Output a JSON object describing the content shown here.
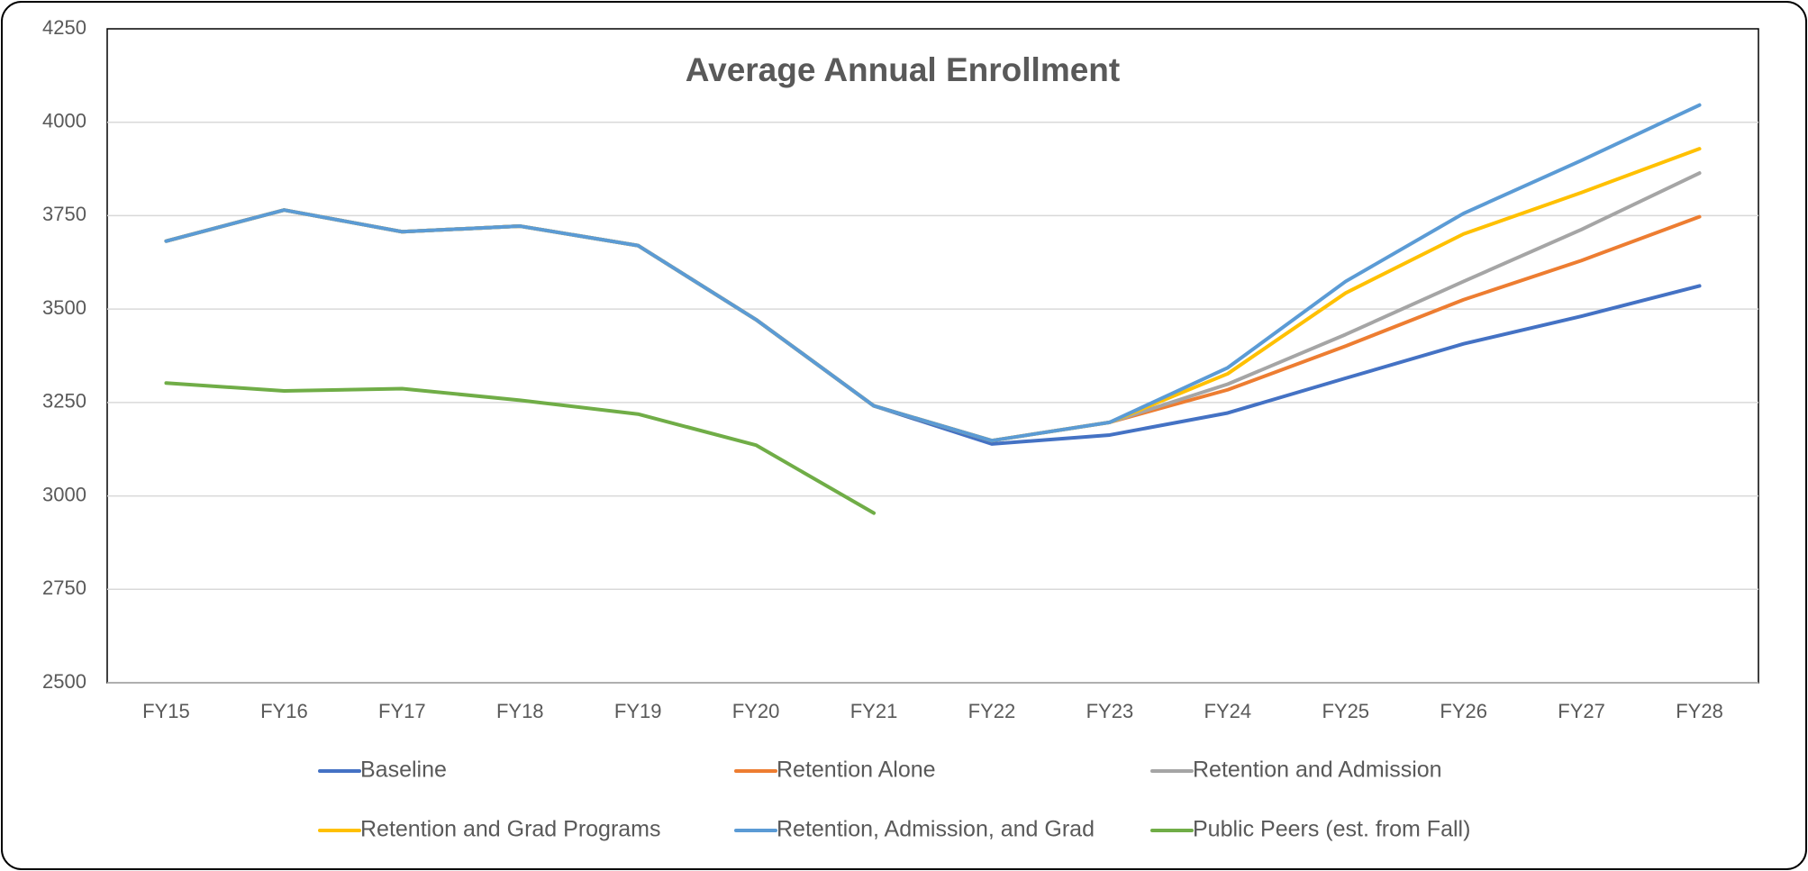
{
  "chart_data": {
    "type": "line",
    "title": "Average Annual Enrollment",
    "categories": [
      "FY15",
      "FY16",
      "FY17",
      "FY18",
      "FY19",
      "FY20",
      "FY21",
      "FY22",
      "FY23",
      "FY24",
      "FY25",
      "FY26",
      "FY27",
      "FY28"
    ],
    "series": [
      {
        "name": "Baseline",
        "color": "#4472c4",
        "values": [
          3682,
          3765,
          3707,
          3722,
          3670,
          3472,
          3241,
          3139,
          3163,
          3222,
          3315,
          3407,
          3481,
          3562
        ]
      },
      {
        "name": "Retention Alone",
        "color": "#ed7d31",
        "values": [
          3682,
          3765,
          3707,
          3722,
          3670,
          3472,
          3241,
          3148,
          3197,
          3284,
          3401,
          3525,
          3630,
          3747
        ]
      },
      {
        "name": "Retention and Admission",
        "color": "#a5a5a5",
        "values": [
          3682,
          3765,
          3707,
          3722,
          3670,
          3472,
          3241,
          3148,
          3197,
          3299,
          3432,
          3574,
          3713,
          3864
        ]
      },
      {
        "name": "Retention and Grad Programs",
        "color": "#ffc000",
        "values": [
          3682,
          3765,
          3707,
          3722,
          3670,
          3472,
          3241,
          3148,
          3197,
          3327,
          3543,
          3701,
          3812,
          3929
        ]
      },
      {
        "name": "Retention, Admission, and Grad",
        "color": "#5b9bd5",
        "values": [
          3682,
          3765,
          3707,
          3722,
          3670,
          3472,
          3241,
          3148,
          3197,
          3343,
          3574,
          3756,
          3898,
          4046
        ]
      },
      {
        "name": "Public Peers (est. from Fall)",
        "color": "#70ad47",
        "values": [
          3302,
          3281,
          3287,
          3256,
          3219,
          3136,
          2954,
          null,
          null,
          null,
          null,
          null,
          null,
          null
        ]
      }
    ],
    "ylim": [
      2500,
      4250
    ],
    "yticks": [
      2500,
      2750,
      3000,
      3250,
      3500,
      3750,
      4000,
      4250
    ],
    "grid": true,
    "legend": "bottom"
  }
}
